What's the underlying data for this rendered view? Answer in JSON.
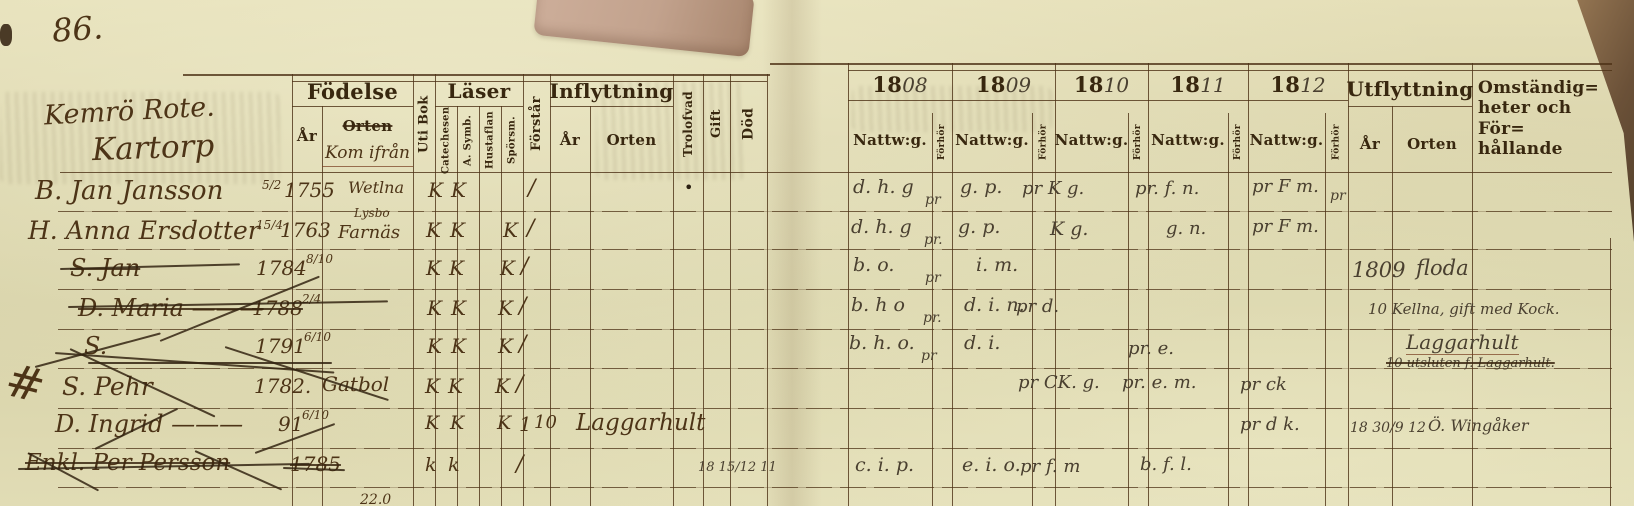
{
  "page": {
    "number": "86.",
    "rote": "Kemrö Rote.",
    "farm": "Kartorp"
  },
  "header": {
    "fodelse": "Födelse",
    "ar": "År",
    "orten": "Orten",
    "kom_ifran": "Kom ifrån",
    "uti_bok": "Uti Bok",
    "laser": "Läser",
    "laser_cols": [
      "Catechesen",
      "A. Symb.",
      "Hustaflan",
      "Spörsm."
    ],
    "forstar": "Förstår",
    "inflyttning": "Inflyttning",
    "infl_ar": "År",
    "infl_orten": "Orten",
    "trolofvad": "Trolofvad",
    "gift": "Gift",
    "dod": "Död",
    "years": [
      {
        "printed": "18",
        "written": "08"
      },
      {
        "printed": "18",
        "written": "09"
      },
      {
        "printed": "18",
        "written": "10"
      },
      {
        "printed": "18",
        "written": "11"
      },
      {
        "printed": "18",
        "written": "12"
      }
    ],
    "nattwg": "Nattw:g.",
    "forhor": "Förhör",
    "utflyttning": "Utflyttning",
    "utfl_ar": "År",
    "utfl_orten": "Orten",
    "omstandigheter": [
      "Omständig=",
      "heter och För=",
      "hållande"
    ]
  },
  "rows": [
    {
      "name": "B. Jan Jansson",
      "birth_pre": "5/2",
      "birth_year": "1755",
      "birth_place": "Wetlna",
      "k1": "K",
      "k2": "K",
      "forstar": "/",
      "trolofvad": "•",
      "n1808": "d. h. g",
      "f1808": "pr",
      "n1809": "g. p.",
      "n1810": "pr K g.",
      "n1811": "pr. f. n.",
      "n1812": "pr F m.",
      "f1812": "pr"
    },
    {
      "name": "H. Anna Ersdotter",
      "birth_pre": "15/4",
      "birth_year": "1763",
      "birth_place": "Farnäs",
      "birth_place_above": "Lysbo",
      "k1": "K",
      "k2": "K",
      "k3": "K",
      "forstar": "/",
      "n1808": "d. h. g",
      "f1808": "pr.",
      "n1809": "g. p.",
      "n1810": "K g.",
      "n1811": "g. n.",
      "n1812": "pr F m."
    },
    {
      "name": "S. Jan",
      "birth_year": "1784",
      "birth_post": "8/10",
      "k1": "K",
      "k2": "K",
      "k3": "K",
      "forstar": "/",
      "n1808": "b. o.",
      "f1808": "pr",
      "n1809": "i. m.",
      "out_year": "1809",
      "out_place": "floda"
    },
    {
      "name": "D. Maria ———",
      "birth_year": "1788",
      "birth_post": "2/4",
      "k1": "K",
      "k2": "K",
      "k3": "K",
      "forstar": "/",
      "n1808": "b. h o",
      "f1808": "pr.",
      "n1809": "d. i. n.",
      "n1810": "pr d.",
      "note": "10 Kellna, gift med Kock."
    },
    {
      "name": "S.",
      "birth_year": "1791",
      "birth_post": "6/10",
      "k1": "K",
      "k2": "K",
      "k3": "K",
      "forstar": "/",
      "n1808": "b. h. o.",
      "f1808": "pr",
      "n1809": "d. i.",
      "n1811": "pr. e.",
      "note": "Laggarhult",
      "note2": "10 utsluten f. Laggarhult."
    },
    {
      "prefix": "#",
      "name": "S. Pehr",
      "birth_year": "1782.",
      "birth_place": "Gatbol",
      "k1": "K",
      "k2": "K",
      "k3": "K",
      "forstar": "/",
      "n1810": "pr CK. g.",
      "n1811": "pr. e. m.",
      "n1812": "pr ck"
    },
    {
      "name": "D. Ingrid ———",
      "birth_year": "91",
      "birth_post": "6/10",
      "k1": "K",
      "k2": "K",
      "k3": "K",
      "forstar": "1",
      "in_year": "10",
      "in_place": "Laggarhult",
      "n1812": "pr d k.",
      "out_year": "18 30/9 12",
      "out_place": "Ö. Wingåker"
    },
    {
      "name": "Enkl. Per Persson",
      "birth_year": "1785",
      "k1": "k",
      "k2": "k",
      "forstar": "/",
      "dod": "18 15/12 11",
      "n1808": "c. i. p.",
      "n1809": "e. i. o.",
      "n1810": "pr f. m",
      "n1811": "b. f. l."
    },
    {
      "birth_post": "22.0"
    }
  ]
}
